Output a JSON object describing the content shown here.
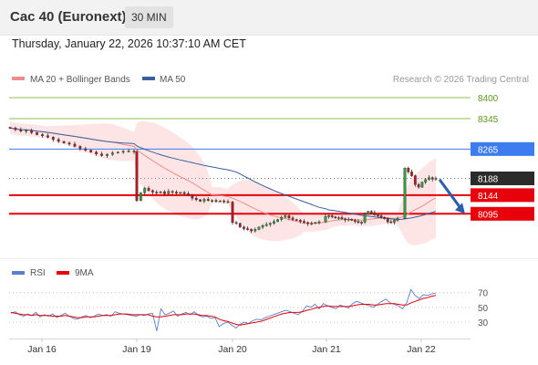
{
  "header": {
    "title": "Cac 40 (Euronext)",
    "timeframe": "30 MIN",
    "timestamp": "Thursday, January 22, 2026 10:37:10 AM CET"
  },
  "price_chart": {
    "legend": [
      {
        "label": "MA 20 + Bollinger Bands",
        "color": "#f08c8c"
      },
      {
        "label": "MA 50",
        "color": "#3a5fa0"
      }
    ],
    "credit": "Research © 2026 Trading Central",
    "levels": [
      {
        "value": 8400,
        "label": "8400",
        "kind": "target",
        "color": "#8cc152",
        "text_color": "#5a9a18"
      },
      {
        "value": 8345,
        "label": "8345",
        "kind": "target",
        "color": "#8cc152",
        "text_color": "#5a9a18"
      },
      {
        "value": 8265,
        "label": "8265",
        "kind": "resistance",
        "color": "#3d7cf0",
        "text_color": "#ffffff"
      },
      {
        "value": 8188,
        "label": "8188",
        "kind": "last",
        "color": "#2b2b2b",
        "text_color": "#ffffff"
      },
      {
        "value": 8144,
        "label": "8144",
        "kind": "pivot",
        "color": "#e8000b",
        "text_color": "#ffffff"
      },
      {
        "value": 8095,
        "label": "8095",
        "kind": "support",
        "color": "#e8000b",
        "text_color": "#ffffff"
      }
    ]
  },
  "rsi_panel": {
    "legend": [
      {
        "label": "RSI",
        "color": "#5a7fd0"
      },
      {
        "label": "9MA",
        "color": "#e8000b"
      }
    ],
    "levels": [
      "70",
      "50",
      "30"
    ]
  },
  "x_axis": {
    "labels": [
      "Jan 16",
      "Jan 19",
      "Jan 20",
      "Jan 21",
      "Jan 22"
    ]
  },
  "colors": {
    "up_candle": "#2e9e3e",
    "down_candle": "#c0141c",
    "bollinger_fill": "#fde2e2",
    "ma20": "#f08c8c",
    "ma50": "#3a5fa0",
    "arrow": "#2a5ea8"
  },
  "chart_data": {
    "type": "candlestick",
    "title": "Cac 40 (Euronext)",
    "interval": "30 MIN",
    "y_range": [
      8000,
      8420
    ],
    "x_ticks": [
      "Jan 16",
      "Jan 19",
      "Jan 20",
      "Jan 21",
      "Jan 22"
    ],
    "horizontal_levels": [
      8400,
      8345,
      8265,
      8188,
      8144,
      8095
    ],
    "last_price": 8188,
    "forecast_arrow": {
      "from_value": 8185,
      "to_value": 8095
    },
    "price_path": [
      {
        "segment": "Jan 16",
        "values": [
          8320,
          8316,
          8312,
          8314,
          8308,
          8303,
          8300,
          8296,
          8290,
          8285,
          8281,
          8278,
          8272,
          8266,
          8262,
          8257,
          8252,
          8248,
          8251,
          8255,
          8257,
          8259,
          8260,
          8258
        ]
      },
      {
        "segment": "Jan 19",
        "values": [
          8130,
          8150,
          8162,
          8156,
          8152,
          8150,
          8153,
          8148,
          8154,
          8152,
          8149,
          8151,
          8148,
          8144,
          8136,
          8132,
          8128,
          8133,
          8130,
          8130,
          8128,
          8129,
          8127,
          8126
        ]
      },
      {
        "segment": "Jan 20",
        "values": [
          8072,
          8070,
          8060,
          8056,
          8054,
          8050,
          8054,
          8060,
          8064,
          8067,
          8070,
          8075,
          8080,
          8086,
          8090,
          8084,
          8080,
          8078,
          8075,
          8072,
          8069,
          8070,
          8072,
          8074
        ]
      },
      {
        "segment": "Jan 21",
        "values": [
          8088,
          8090,
          8087,
          8084,
          8085,
          8082,
          8079,
          8081,
          8078,
          8075,
          8072,
          8073,
          8094,
          8101,
          8098,
          8092,
          8090,
          8086,
          8082,
          8074,
          8073,
          8078,
          8083
        ]
      },
      {
        "segment": "Jan 22",
        "values": [
          8215,
          8205,
          8195,
          8172,
          8165,
          8178,
          8185,
          8190,
          8186,
          8188
        ]
      }
    ],
    "rsi": {
      "scale_ticks": [
        70,
        50,
        30
      ],
      "rsi_path": [
        42,
        44,
        40,
        38,
        41,
        39,
        43,
        37,
        40,
        38,
        41,
        36,
        39,
        42,
        38,
        35,
        34,
        37,
        39,
        36,
        38,
        41,
        39,
        40,
        38,
        44,
        42,
        41,
        40,
        39,
        38,
        40,
        39,
        41,
        42,
        18,
        48,
        40,
        42,
        45,
        38,
        41,
        43,
        40,
        44,
        39,
        37,
        38,
        35,
        36,
        24,
        28,
        30,
        26,
        22,
        27,
        30,
        28,
        32,
        34,
        33,
        36,
        38,
        40,
        42,
        44,
        46,
        44,
        42,
        40,
        45,
        52,
        50,
        54,
        48,
        55,
        52,
        50,
        48,
        53,
        51,
        49,
        55,
        58,
        56,
        54,
        52,
        50,
        54,
        58,
        61,
        56,
        54,
        52,
        48,
        56,
        74,
        66,
        62,
        67,
        66,
        68,
        69
      ],
      "ma_path": [
        43,
        42,
        41,
        40,
        40,
        39,
        40,
        39,
        39,
        39,
        38,
        38,
        38,
        39,
        38,
        37,
        36,
        36,
        37,
        37,
        37,
        38,
        39,
        39,
        39,
        40,
        41,
        41,
        41,
        40,
        40,
        40,
        40,
        40,
        38,
        37,
        37,
        38,
        39,
        40,
        40,
        40,
        41,
        41,
        41,
        40,
        39,
        39,
        38,
        37,
        34,
        32,
        31,
        29,
        27,
        26,
        27,
        28,
        29,
        30,
        31,
        33,
        35,
        37,
        39,
        41,
        42,
        43,
        43,
        43,
        44,
        46,
        47,
        49,
        50,
        51,
        52,
        51,
        51,
        51,
        51,
        51,
        52,
        53,
        54,
        54,
        54,
        53,
        53,
        54,
        55,
        55,
        55,
        54,
        53,
        53,
        56,
        58,
        60,
        62,
        63,
        65,
        66
      ]
    }
  }
}
